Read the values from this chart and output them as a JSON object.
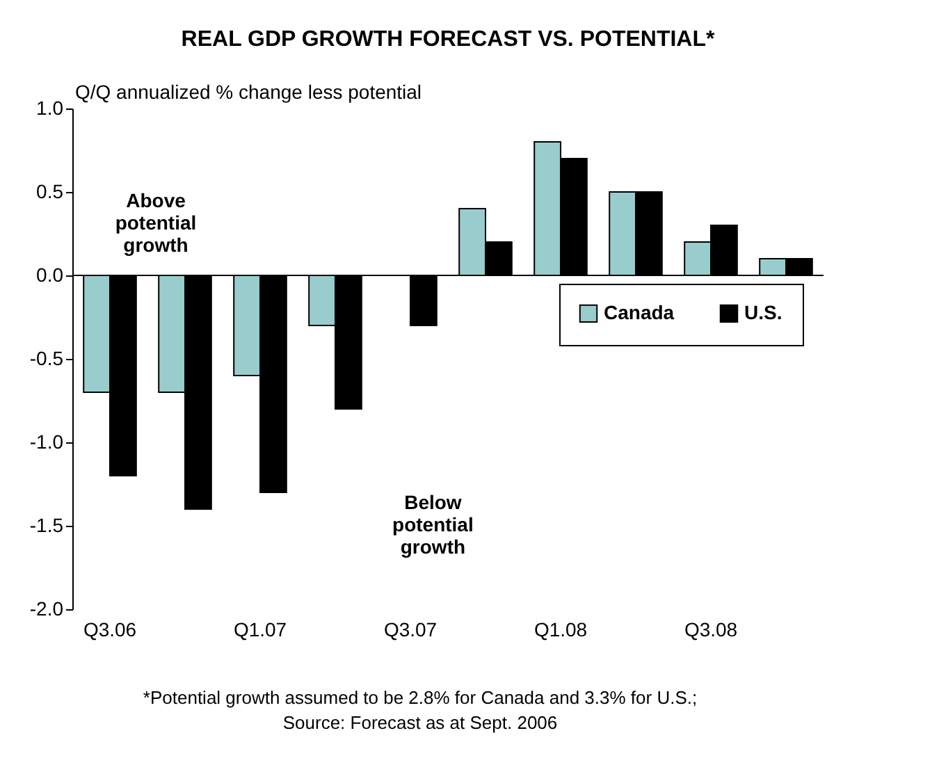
{
  "chart_data": {
    "type": "bar",
    "title": "REAL GDP GROWTH FORECAST VS. POTENTIAL*",
    "ylabel": "Q/Q annualized % change less potential",
    "categories": [
      "Q3.06",
      null,
      "Q1.07",
      null,
      "Q3.07",
      null,
      "Q1.08",
      null,
      "Q3.08",
      null
    ],
    "series": [
      {
        "name": "Canada",
        "color": "#99cccc",
        "values": [
          -0.7,
          -0.7,
          -0.6,
          -0.3,
          null,
          0.4,
          0.8,
          0.5,
          0.2,
          0.1
        ]
      },
      {
        "name": "U.S.",
        "color": "#000000",
        "values": [
          -1.2,
          -1.4,
          -1.3,
          -0.8,
          -0.3,
          0.2,
          0.7,
          0.5,
          0.3,
          0.1
        ]
      }
    ],
    "ylim": [
      -2.0,
      1.0
    ],
    "yticks": [
      {
        "value": -2,
        "label": "-2.0"
      },
      {
        "value": -1.5,
        "label": "-1.5"
      },
      {
        "value": -1,
        "label": "-1.0"
      },
      {
        "value": -0.5,
        "label": "-0.5"
      },
      {
        "value": 0,
        "label": "0.0"
      },
      {
        "value": 0.5,
        "label": "0.5"
      },
      {
        "value": 1,
        "label": "1.0"
      }
    ],
    "ref_lines": [
      {
        "axis": "y",
        "value": 0
      }
    ],
    "legend": "right",
    "grid": false,
    "annotations": [
      "Above potential growth",
      "Below potential growth",
      "*Potential growth assumed to be 2.8% for Canada and 3.3% for U.S.;",
      "Source: Forecast as at Sept. 2006"
    ]
  }
}
